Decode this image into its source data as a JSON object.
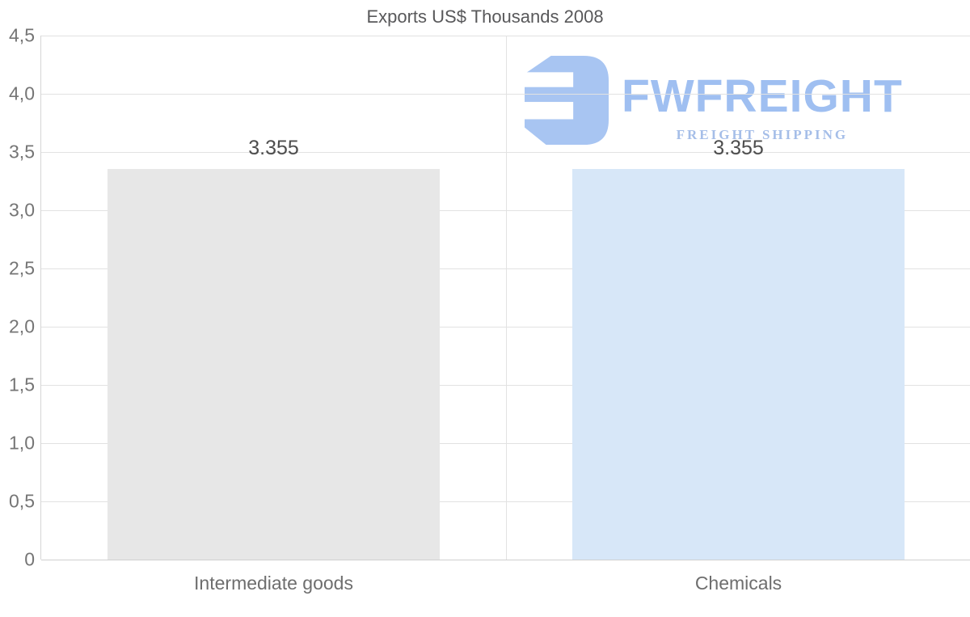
{
  "chart_data": {
    "type": "bar",
    "title": "Exports US$ Thousands 2008",
    "categories": [
      "Intermediate goods",
      "Chemicals"
    ],
    "values": [
      3.355,
      3.355
    ],
    "value_labels": [
      "3.355",
      "3.355"
    ],
    "bar_colors": [
      "#e7e7e7",
      "#d7e7f8"
    ],
    "xlabel": "",
    "ylabel": "",
    "ylim": [
      0,
      4.5
    ],
    "ytick_values": [
      0,
      0.5,
      1,
      1.5,
      2,
      2.5,
      3,
      3.5,
      4,
      4.5
    ],
    "ytick_labels": [
      "0",
      "0,5",
      "1,0",
      "1,5",
      "2,0",
      "2,5",
      "3,0",
      "3,5",
      "4,0",
      "4,5"
    ],
    "grid": true,
    "legend": false,
    "decimal_separator_axis": ",",
    "colors": {
      "grid": "#e2e2e2",
      "axis": "#d6d6d6",
      "title": "#58585a",
      "tick_label": "#757575",
      "value_label": "#4d4d4d"
    }
  },
  "watermark": {
    "name": "FWFREIGHT",
    "tagline": "FREIGHT SHIPPING",
    "icon_color": "#a6c4f2",
    "name_color": "#9cbdf1",
    "tagline_color": "#a3bce8"
  }
}
